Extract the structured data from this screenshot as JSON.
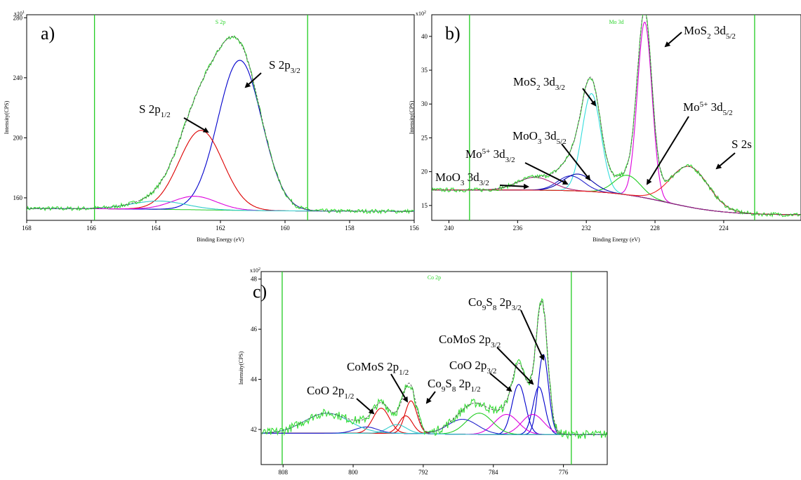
{
  "chart_data": [
    {
      "type": "line",
      "panel_label": "a)",
      "title": "S 2p",
      "xlabel": "Binding Energy (eV)",
      "ylabel": "Intensity(CPS)",
      "y_multiplier": "x10",
      "y_multiplier_exp": "1",
      "x_ticks": [
        "168",
        "166",
        "164",
        "162",
        "160",
        "158",
        "156"
      ],
      "y_ticks": [
        "160",
        "200",
        "240",
        "280"
      ],
      "xlim": [
        168,
        156
      ],
      "ylim": [
        145,
        282
      ],
      "window_lines": [
        165.9,
        159.3
      ],
      "background": {
        "low": 151,
        "high": 153
      },
      "peaks": [
        {
          "name": "S 2p3/2",
          "center": 161.4,
          "height": 100,
          "fwhm": 1.6,
          "color": "#0000cc"
        },
        {
          "name": "S 2p1/2",
          "center": 162.6,
          "height": 53,
          "fwhm": 1.6,
          "color": "#dd0000"
        },
        {
          "name": "",
          "center": 162.8,
          "height": 9,
          "fwhm": 1.6,
          "color": "#dd00dd"
        },
        {
          "name": "",
          "center": 163.9,
          "height": 5.5,
          "fwhm": 2.0,
          "color": "#33cccc"
        }
      ],
      "annotations": [
        {
          "text": "S 2p",
          "sub": "3/2",
          "x": 161.4
        },
        {
          "text": "S 2p",
          "sub": "1/2",
          "x": 162.6
        }
      ]
    },
    {
      "type": "line",
      "panel_label": "b)",
      "title": "Mo 3d",
      "xlabel": "Binding Energy (eV)",
      "ylabel": "Intensity(CPS)",
      "y_multiplier": "x10",
      "y_multiplier_exp": "2",
      "x_ticks": [
        "240",
        "236",
        "232",
        "228",
        "224"
      ],
      "y_ticks": [
        "15",
        "20",
        "25",
        "30",
        "35",
        "40"
      ],
      "xlim": [
        241,
        219.5
      ],
      "ylim": [
        12.8,
        43.2
      ],
      "window_lines": [
        238.8,
        222.2
      ],
      "background": {
        "low": 13.6,
        "high": 17.3
      },
      "peaks": [
        {
          "name": "MoS2 3d5/2",
          "center": 228.6,
          "height": 26.0,
          "fwhm": 1.0,
          "color": "#dd00dd"
        },
        {
          "name": "MoS2 3d3/2",
          "center": 231.7,
          "height": 14.5,
          "fwhm": 1.3,
          "color": "#33dddd"
        },
        {
          "name": "Mo5+ 3d5/2",
          "center": 229.6,
          "height": 2.9,
          "fwhm": 1.8,
          "color": "#22cc22"
        },
        {
          "name": "Mo5+ 3d3/2",
          "center": 232.9,
          "height": 2.2,
          "fwhm": 1.8,
          "color": "#2222cc"
        },
        {
          "name": "MoO3 3d5/2",
          "center": 232.5,
          "height": 2.5,
          "fwhm": 2.0,
          "color": "#0000aa"
        },
        {
          "name": "MoO3 3d3/2",
          "center": 235.0,
          "height": 1.9,
          "fwhm": 2.4,
          "color": "#aa2277"
        },
        {
          "name": "S 2s",
          "center": 226.0,
          "height": 6.0,
          "fwhm": 2.6,
          "color": "#ee2222"
        }
      ],
      "annotations": [
        {
          "text": "MoS",
          "sub": "2",
          "after": " 3d",
          "sub2": "5/2",
          "x": 228.6
        },
        {
          "text": "MoS",
          "sub": "2",
          "after": " 3d",
          "sub2": "3/2",
          "x": 231.7
        },
        {
          "text": "Mo",
          "sup": "5+",
          "after": " 3d",
          "sub2": "5/2",
          "x": 229.6
        },
        {
          "text": "MoO",
          "sub": "3",
          "after": " 3d",
          "sub2": "5/2",
          "x": 232.5
        },
        {
          "text": "Mo",
          "sup": "5+",
          "after": " 3d",
          "sub2": "3/2",
          "x": 232.9
        },
        {
          "text": "MoO",
          "sub": "3",
          "after": " 3d",
          "sub2": "3/2",
          "x": 235.0
        },
        {
          "text": "S 2s",
          "x": 226.0
        }
      ]
    },
    {
      "type": "line",
      "panel_label": "c)",
      "title": "Co 2p",
      "xlabel": "Binding Energy (eV)",
      "ylabel": "Intensity(CPS)",
      "y_multiplier": "x10",
      "y_multiplier_exp": "2",
      "x_ticks": [
        "808",
        "800",
        "792",
        "784",
        "776"
      ],
      "y_ticks": [
        "42",
        "44",
        "46",
        "48"
      ],
      "xlim": [
        810.5,
        771
      ],
      "ylim": [
        40.6,
        48.3
      ],
      "window_lines": [
        808.1,
        775.1
      ],
      "background": {
        "low": 41.8,
        "high": 41.85
      },
      "peaks": [
        {
          "name": "Co9S8 2p3/2",
          "center": 778.3,
          "height": 3.2,
          "fwhm": 1.4,
          "color": "#0000cc"
        },
        {
          "name": "CoMoS 2p3/2",
          "center": 778.8,
          "height": 1.9,
          "fwhm": 1.6,
          "color": "#0000cc"
        },
        {
          "name": "CoO 2p3/2",
          "center": 781.1,
          "height": 2.0,
          "fwhm": 1.8,
          "color": "#0000cc"
        },
        {
          "name": "",
          "center": 779.5,
          "height": 0.8,
          "fwhm": 3.0,
          "color": "#dd00dd"
        },
        {
          "name": "",
          "center": 782.5,
          "height": 0.8,
          "fwhm": 3.2,
          "color": "#dd00dd"
        },
        {
          "name": "",
          "center": 785.6,
          "height": 0.85,
          "fwhm": 3.5,
          "color": "#22cc22"
        },
        {
          "name": "",
          "center": 787.5,
          "height": 0.6,
          "fwhm": 4.0,
          "color": "#2222cc"
        },
        {
          "name": "Co9S8 2p1/2",
          "center": 793.4,
          "height": 1.3,
          "fwhm": 1.6,
          "color": "#dd0000"
        },
        {
          "name": "CoMoS 2p1/2",
          "center": 794.0,
          "height": 0.7,
          "fwhm": 1.8,
          "color": "#dd0000"
        },
        {
          "name": "CoO 2p1/2",
          "center": 796.8,
          "height": 1.0,
          "fwhm": 2.2,
          "color": "#dd0000"
        },
        {
          "name": "",
          "center": 795.0,
          "height": 0.35,
          "fwhm": 2.5,
          "color": "#33cccc"
        },
        {
          "name": "",
          "center": 798.5,
          "height": 0.25,
          "fwhm": 3.0,
          "color": "#2222cc"
        },
        {
          "name": "",
          "center": 803.0,
          "height": 0.8,
          "fwhm": 6.0,
          "color": "#33cccc"
        }
      ],
      "annotations": [
        {
          "text": "Co",
          "sub": "9",
          "after": "S",
          "sub3": "8",
          "after2": " 2p",
          "sub2": "3/2",
          "x": 778.3
        },
        {
          "text": "CoMoS 2p",
          "sub2": "3/2",
          "x": 778.8
        },
        {
          "text": "CoO 2p",
          "sub2": "3/2",
          "x": 781.1
        },
        {
          "text": "Co",
          "sub": "9",
          "after": "S",
          "sub3": "8",
          "after2": " 2p",
          "sub2": "1/2",
          "x": 793.4
        },
        {
          "text": "CoMoS 2p",
          "sub2": "1/2",
          "x": 794.0
        },
        {
          "text": "CoO 2p",
          "sub2": "1/2",
          "x": 796.8
        }
      ]
    }
  ]
}
